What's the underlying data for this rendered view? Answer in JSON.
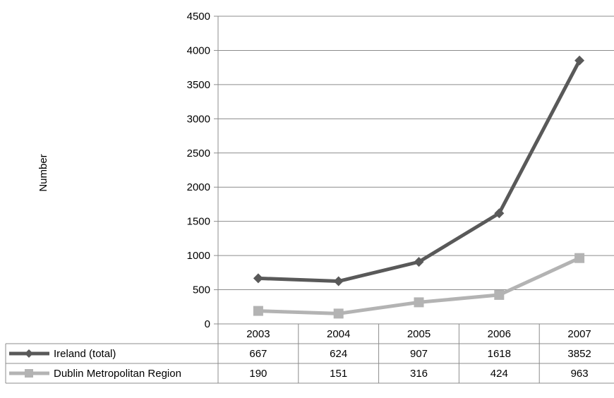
{
  "chart_data": {
    "type": "line",
    "title": "",
    "xlabel": "",
    "ylabel": "Number",
    "ylim": [
      0,
      4500
    ],
    "yticks": [
      0,
      500,
      1000,
      1500,
      2000,
      2500,
      3000,
      3500,
      4000,
      4500
    ],
    "grid": true,
    "legend": "data-table",
    "categories": [
      "2003",
      "2004",
      "2005",
      "2006",
      "2007"
    ],
    "series": [
      {
        "name": "Ireland (total)",
        "values": [
          667,
          624,
          907,
          1618,
          3852
        ],
        "color": "#595959",
        "marker": "diamond"
      },
      {
        "name": "Dublin Metropolitan Region",
        "values": [
          190,
          151,
          316,
          424,
          963
        ],
        "color": "#b3b3b3",
        "marker": "square"
      }
    ]
  }
}
